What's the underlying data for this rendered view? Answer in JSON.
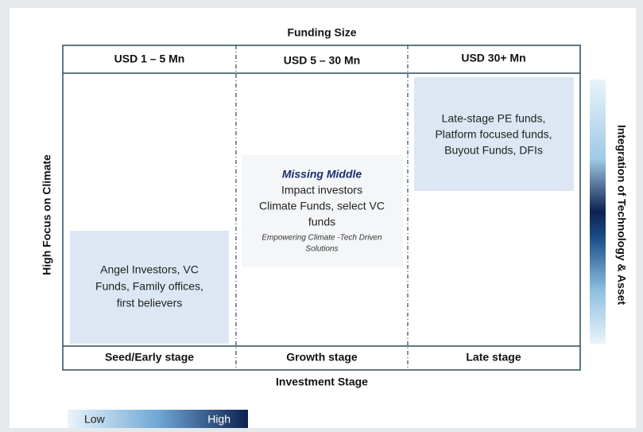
{
  "title": "Funding Size",
  "columns": [
    "USD 1 – 5 Mn",
    "USD 5 – 30 Mn",
    "USD 30+ Mn"
  ],
  "stages": [
    "Seed/Early stage",
    "Growth stage",
    "Late stage"
  ],
  "x_axis_label": "Investment Stage",
  "y_axis_label": "High Focus on Climate",
  "right_axis_label": "Integration of Technology & Asset",
  "boxes": [
    {
      "lines": [
        "Angel Investors, VC",
        "Funds, Family offices,",
        "first believers"
      ]
    },
    {
      "heading": "Missing Middle",
      "lines": [
        "Impact investors",
        "Climate Funds, select VC",
        "funds"
      ],
      "note_lines": [
        "Empowering Climate -Tech Driven",
        "Solutions"
      ]
    },
    {
      "lines": [
        "Late-stage PE funds,",
        "Platform focused funds,",
        "Buyout Funds, DFIs"
      ]
    }
  ],
  "legend": {
    "low": "Low",
    "high": "High"
  }
}
